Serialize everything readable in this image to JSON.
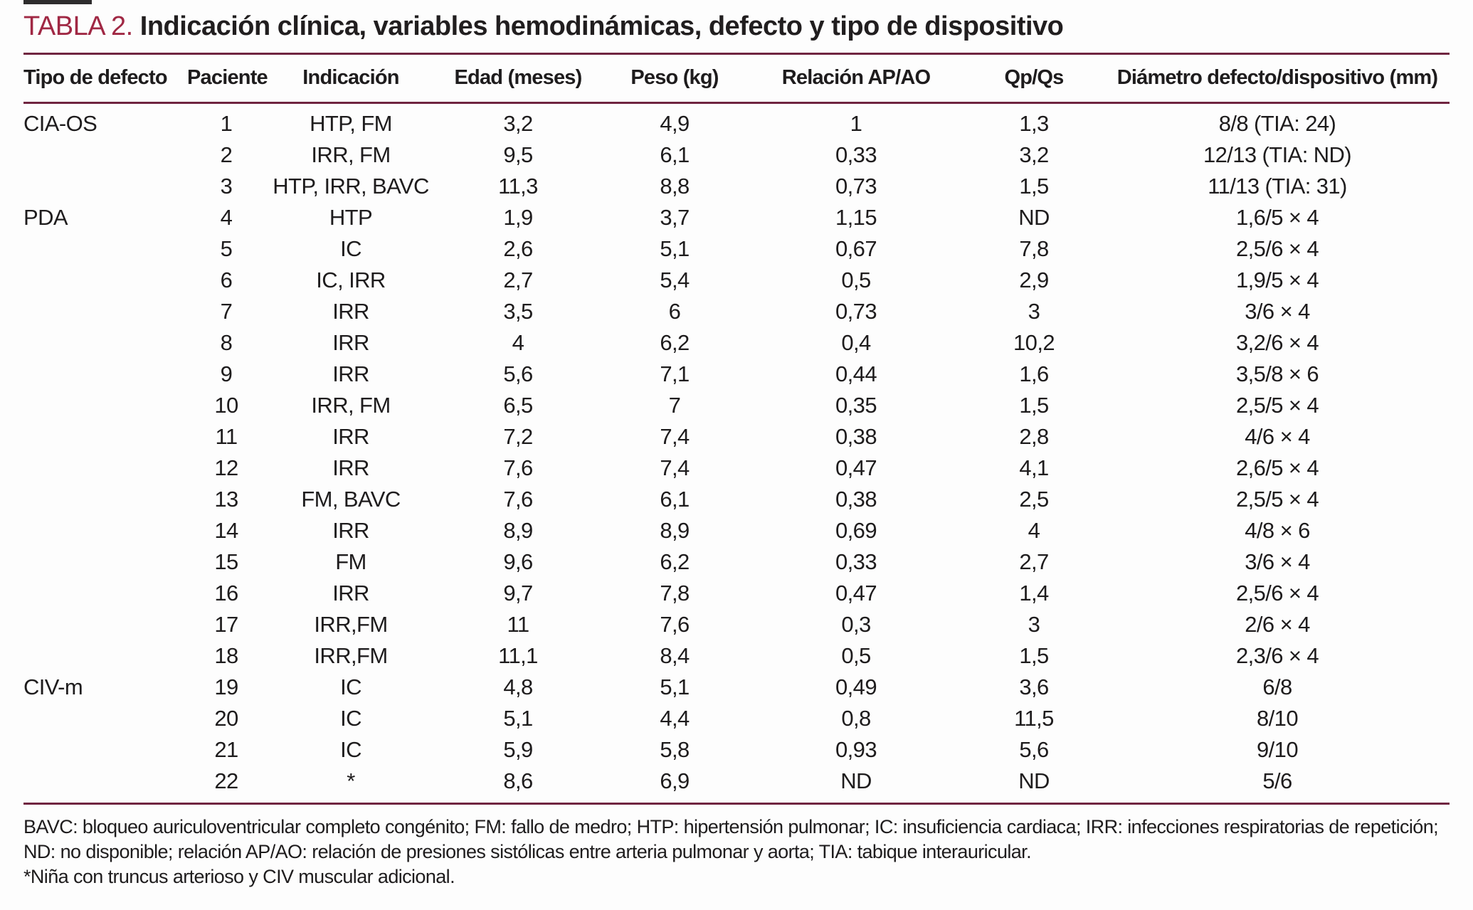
{
  "title": {
    "label": "TABLA 2.",
    "text": "Indicación clínica, variables hemodinámicas, defecto y tipo de dispositivo"
  },
  "colors": {
    "accent_red": "#a02844",
    "rule_maroon": "#702540",
    "text": "#1e1c1d"
  },
  "table": {
    "columns": [
      "Tipo de defecto",
      "Paciente",
      "Indicación",
      "Edad (meses)",
      "Peso (kg)",
      "Relación AP/AO",
      "Qp/Qs",
      "Diámetro defecto/dispositivo (mm)"
    ],
    "rows": [
      [
        "CIA-OS",
        "1",
        "HTP, FM",
        "3,2",
        "4,9",
        "1",
        "1,3",
        "8/8 (TIA: 24)"
      ],
      [
        "",
        "2",
        "IRR, FM",
        "9,5",
        "6,1",
        "0,33",
        "3,2",
        "12/13 (TIA: ND)"
      ],
      [
        "",
        "3",
        "HTP, IRR, BAVC",
        "11,3",
        "8,8",
        "0,73",
        "1,5",
        "11/13 (TIA: 31)"
      ],
      [
        "PDA",
        "4",
        "HTP",
        "1,9",
        "3,7",
        "1,15",
        "ND",
        "1,6/5 × 4"
      ],
      [
        "",
        "5",
        "IC",
        "2,6",
        "5,1",
        "0,67",
        "7,8",
        "2,5/6 × 4"
      ],
      [
        "",
        "6",
        "IC, IRR",
        "2,7",
        "5,4",
        "0,5",
        "2,9",
        "1,9/5 × 4"
      ],
      [
        "",
        "7",
        "IRR",
        "3,5",
        "6",
        "0,73",
        "3",
        "3/6 × 4"
      ],
      [
        "",
        "8",
        "IRR",
        "4",
        "6,2",
        "0,4",
        "10,2",
        "3,2/6 × 4"
      ],
      [
        "",
        "9",
        "IRR",
        "5,6",
        "7,1",
        "0,44",
        "1,6",
        "3,5/8 × 6"
      ],
      [
        "",
        "10",
        "IRR, FM",
        "6,5",
        "7",
        "0,35",
        "1,5",
        "2,5/5 × 4"
      ],
      [
        "",
        "11",
        "IRR",
        "7,2",
        "7,4",
        "0,38",
        "2,8",
        "4/6 × 4"
      ],
      [
        "",
        "12",
        "IRR",
        "7,6",
        "7,4",
        "0,47",
        "4,1",
        "2,6/5 × 4"
      ],
      [
        "",
        "13",
        "FM, BAVC",
        "7,6",
        "6,1",
        "0,38",
        "2,5",
        "2,5/5 × 4"
      ],
      [
        "",
        "14",
        "IRR",
        "8,9",
        "8,9",
        "0,69",
        "4",
        "4/8 × 6"
      ],
      [
        "",
        "15",
        "FM",
        "9,6",
        "6,2",
        "0,33",
        "2,7",
        "3/6 × 4"
      ],
      [
        "",
        "16",
        "IRR",
        "9,7",
        "7,8",
        "0,47",
        "1,4",
        "2,5/6 × 4"
      ],
      [
        "",
        "17",
        "IRR,FM",
        "11",
        "7,6",
        "0,3",
        "3",
        "2/6 × 4"
      ],
      [
        "",
        "18",
        "IRR,FM",
        "11,1",
        "8,4",
        "0,5",
        "1,5",
        "2,3/6 × 4"
      ],
      [
        "CIV-m",
        "19",
        "IC",
        "4,8",
        "5,1",
        "0,49",
        "3,6",
        "6/8"
      ],
      [
        "",
        "20",
        "IC",
        "5,1",
        "4,4",
        "0,8",
        "11,5",
        "8/10"
      ],
      [
        "",
        "21",
        "IC",
        "5,9",
        "5,8",
        "0,93",
        "5,6",
        "9/10"
      ],
      [
        "",
        "22",
        "*",
        "8,6",
        "6,9",
        "ND",
        "ND",
        "5/6"
      ]
    ]
  },
  "footnotes": [
    "BAVC: bloqueo auriculoventricular completo congénito; FM: fallo de medro; HTP: hipertensión pulmonar; IC: insuficiencia cardiaca; IRR: infecciones respiratorias de repetición;",
    "ND: no disponible; relación AP/AO: relación de presiones sistólicas entre arteria pulmonar y aorta; TIA: tabique interauricular.",
    "*Niña con truncus arterioso y CIV muscular adicional."
  ]
}
